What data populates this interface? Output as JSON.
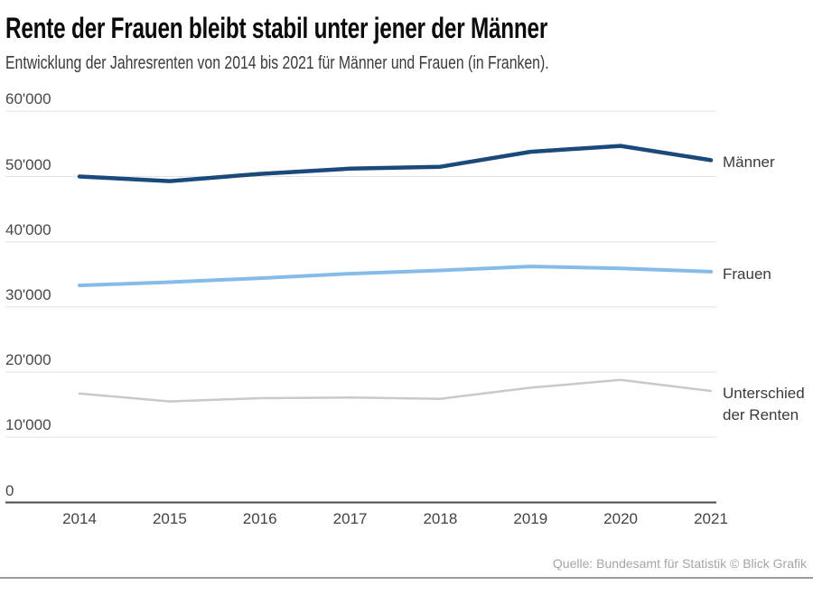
{
  "header": {
    "title": "Rente der Frauen bleibt stabil unter jener der Männer",
    "subtitle": "Entwicklung der Jahresrenten von 2014 bis 2021 für Männer und Frauen (in Franken)."
  },
  "footer": {
    "source": "Quelle: Bundesamt für Statistik © Blick Grafik"
  },
  "chart_data": {
    "type": "line",
    "title": "Rente der Frauen bleibt stabil unter jener der Männer",
    "subtitle": "Entwicklung der Jahresrenten von 2014 bis 2021 für Männer und Frauen (in Franken).",
    "categories": [
      "2014",
      "2015",
      "2016",
      "2017",
      "2018",
      "2019",
      "2020",
      "2021"
    ],
    "series": [
      {
        "name": "Männer",
        "label_lines": [
          "Männer"
        ],
        "color": "#1a4a7c",
        "stroke_width": 4.5,
        "values": [
          50000,
          49300,
          50400,
          51200,
          51500,
          53800,
          54700,
          52500
        ]
      },
      {
        "name": "Frauen",
        "label_lines": [
          "Frauen"
        ],
        "color": "#85bbe9",
        "stroke_width": 4,
        "values": [
          33300,
          33800,
          34400,
          35100,
          35600,
          36200,
          35900,
          35400
        ]
      },
      {
        "name": "Unterschied der Renten",
        "label_lines": [
          "Unterschied",
          "der Renten"
        ],
        "color": "#c9c9c9",
        "stroke_width": 2.5,
        "values": [
          16700,
          15500,
          16000,
          16100,
          15900,
          17600,
          18800,
          17100
        ]
      }
    ],
    "xlabel": "",
    "ylabel": "",
    "ylim": [
      0,
      60000
    ],
    "ytick_values": [
      0,
      10000,
      20000,
      30000,
      40000,
      50000,
      60000
    ],
    "ytick_labels": [
      "0",
      "10'000",
      "20'000",
      "30'000",
      "40'000",
      "50'000",
      "60'000"
    ],
    "grid": "horizontal",
    "legend_position": "right of line ends",
    "colors": {
      "grid": "#e2e2e2",
      "axis": "#4a4a4a",
      "tick_text": "#484846",
      "series_label_text": "#3b3b3b",
      "source_text": "#a5a5a5",
      "footer_rule": "#9c9c9c",
      "background": "#ffffff"
    }
  }
}
